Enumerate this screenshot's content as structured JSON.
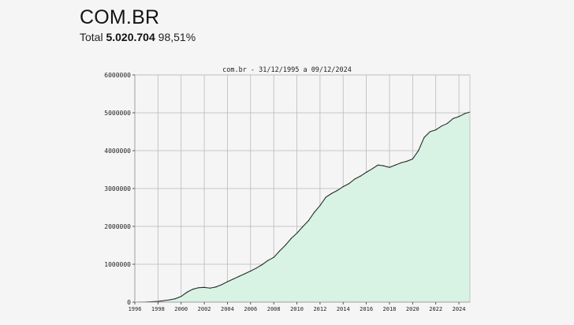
{
  "header": {
    "title": "COM.BR",
    "total_label": "Total",
    "total_value": "5.020.704",
    "total_percent": "98,51%"
  },
  "chart_data": {
    "type": "area",
    "title": "com.br - 31/12/1995 a 09/12/2024",
    "xlabel": "",
    "ylabel": "",
    "xlim": [
      1996,
      2024.95
    ],
    "ylim": [
      0,
      6000000
    ],
    "x_ticks": [
      1996,
      1998,
      2000,
      2002,
      2004,
      2006,
      2008,
      2010,
      2012,
      2014,
      2016,
      2018,
      2020,
      2022,
      2024
    ],
    "y_ticks": [
      0,
      1000000,
      2000000,
      3000000,
      4000000,
      5000000,
      6000000
    ],
    "grid": true,
    "colors": {
      "fill": "#d8f2e3",
      "line": "#2b2b2b",
      "grid": "#b9b9b9"
    },
    "series": [
      {
        "x": [
          1996,
          1997,
          1998,
          1999,
          1999.5,
          2000,
          2000.5,
          2001,
          2001.5,
          2002,
          2002.5,
          2003,
          2003.5,
          2004,
          2004.5,
          2005,
          2005.5,
          2006,
          2006.5,
          2007,
          2007.5,
          2008,
          2008.5,
          2009,
          2009.5,
          2010,
          2010.5,
          2011,
          2011.5,
          2012,
          2012.5,
          2013,
          2013.5,
          2014,
          2014.5,
          2015,
          2015.5,
          2016,
          2016.5,
          2017,
          2017.5,
          2018,
          2018.5,
          2019,
          2019.5,
          2020,
          2020.5,
          2021,
          2021.5,
          2022,
          2022.5,
          2023,
          2023.5,
          2024,
          2024.5,
          2024.95
        ],
        "y": [
          0,
          5000,
          20000,
          60000,
          90000,
          150000,
          260000,
          340000,
          380000,
          390000,
          370000,
          400000,
          460000,
          540000,
          610000,
          680000,
          750000,
          820000,
          900000,
          990000,
          1100000,
          1180000,
          1350000,
          1500000,
          1680000,
          1820000,
          1990000,
          2150000,
          2370000,
          2550000,
          2770000,
          2870000,
          2950000,
          3050000,
          3130000,
          3250000,
          3330000,
          3430000,
          3520000,
          3620000,
          3600000,
          3560000,
          3620000,
          3680000,
          3720000,
          3780000,
          4000000,
          4350000,
          4500000,
          4550000,
          4650000,
          4720000,
          4850000,
          4900000,
          4980000,
          5020704
        ]
      }
    ]
  }
}
